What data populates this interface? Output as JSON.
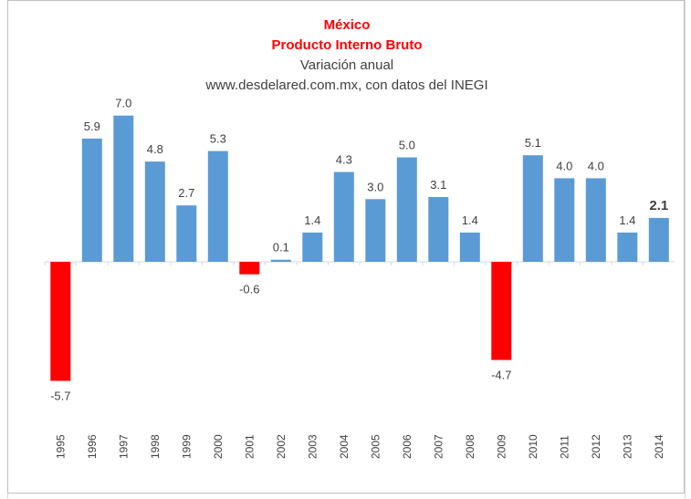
{
  "chart_data": {
    "type": "bar",
    "title": "México",
    "subtitle_lines": [
      "Producto Interno Bruto",
      "Variación anual",
      "www.desdelared.com.mx, con datos del INEGI"
    ],
    "categories": [
      "1995",
      "1996",
      "1997",
      "1998",
      "1999",
      "2000",
      "2001",
      "2002",
      "2003",
      "2004",
      "2005",
      "2006",
      "2007",
      "2008",
      "2009",
      "2010",
      "2011",
      "2012",
      "2013",
      "2014"
    ],
    "values": [
      -5.7,
      5.9,
      7.0,
      4.8,
      2.7,
      5.3,
      -0.6,
      0.1,
      1.4,
      4.3,
      3.0,
      5.0,
      3.1,
      1.4,
      -4.7,
      5.1,
      4.0,
      4.0,
      1.4,
      2.1
    ],
    "data_labels": [
      "-5.7",
      "5.9",
      "7.0",
      "4.8",
      "2.7",
      "5.3",
      "-0.6",
      "0.1",
      "1.4",
      "4.3",
      "3.0",
      "5.0",
      "3.1",
      "1.4",
      "-4.7",
      "5.1",
      "4.0",
      "4.0",
      "1.4",
      "2.1"
    ],
    "highlight_category": "2014",
    "xlabel": "",
    "ylabel": "",
    "ylim": [
      -8,
      8
    ],
    "grid": false,
    "legend": "none",
    "colors": {
      "positive": "#5b9bd5",
      "negative": "#ff0000",
      "title": "#ff0000",
      "subtitle": "#404040",
      "label": "#404040"
    }
  }
}
